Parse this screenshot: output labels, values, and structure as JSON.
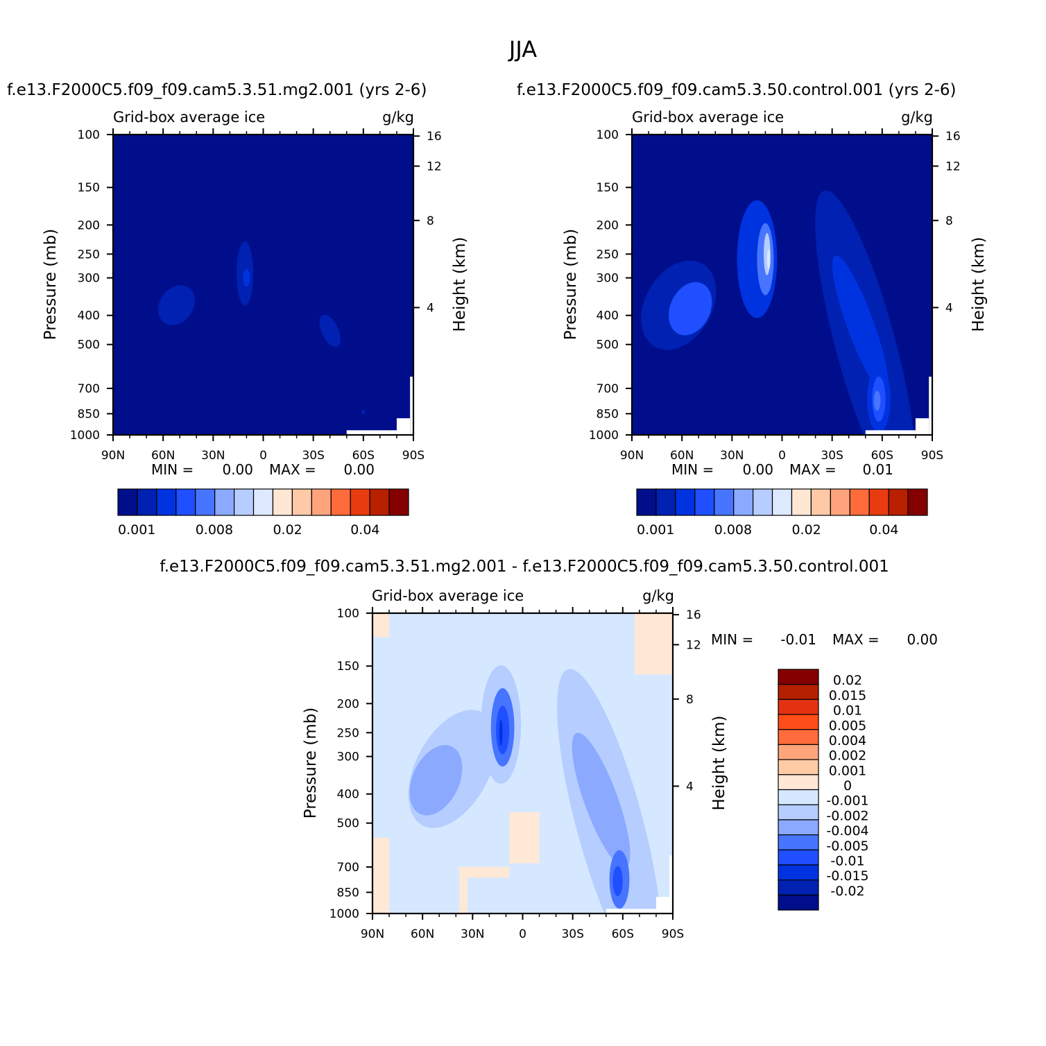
{
  "figure_title": "JJA",
  "colors": {
    "abs_palette": [
      "#000e8c",
      "#0021b2",
      "#0033e0",
      "#1f4fff",
      "#4775ff",
      "#8aa9ff",
      "#b6cdff",
      "#dce9ff",
      "#ffe7d4",
      "#ffc9a8",
      "#ffa37c",
      "#ff6b3a",
      "#e83c10",
      "#b82000",
      "#850000"
    ],
    "diff_palette": [
      "#000e8c",
      "#0021b2",
      "#0033e0",
      "#1f4fff",
      "#4775ff",
      "#8aa9ff",
      "#b6cdff",
      "#d6e8ff",
      "#ffe8d6",
      "#ffcba5",
      "#ffa57c",
      "#ff6b3a",
      "#ff4d1a",
      "#e23212",
      "#b52000",
      "#850000"
    ]
  },
  "chart_data": [
    {
      "type": "heatmap",
      "id": "panel_mg2",
      "title": "f.e13.F2000C5.f09_f09.cam5.3.51.mg2.001 (yrs 2-6)",
      "subtitle_left": "Grid-box average ice",
      "subtitle_right": "g/kg",
      "xlabel": "",
      "ylabel": "Pressure (mb)",
      "ylabel_right": "Height (km)",
      "x_ticklabels": [
        "90N",
        "60N",
        "30N",
        "0",
        "30S",
        "60S",
        "90S"
      ],
      "x_range": [
        90,
        -90
      ],
      "y_ticklabels": [
        "100",
        "150",
        "200",
        "250",
        "300",
        "400",
        "500",
        "700",
        "850",
        "1000"
      ],
      "y_range": [
        100,
        1000
      ],
      "height_ticklabels": [
        "16",
        "12",
        "8",
        "4"
      ],
      "stats": {
        "min_label": "MIN =",
        "min": "0.00",
        "max_label": "MAX =",
        "max": "0.00"
      },
      "background_level": 0,
      "blobs": [
        {
          "lat": 52,
          "p": 370,
          "ry": 35,
          "sx": 10,
          "sp": 60,
          "level": 1,
          "rot": 35
        },
        {
          "lat": 11,
          "p": 290,
          "ry": 45,
          "sx": 5,
          "sp": 70,
          "level": 1,
          "rot": 0
        },
        {
          "lat": 10,
          "p": 300,
          "ry": 5,
          "sx": 2,
          "sp": 20,
          "level": 2,
          "rot": 0
        },
        {
          "lat": -40,
          "p": 450,
          "ry": 40,
          "sx": 5,
          "sp": 60,
          "level": 1,
          "rot": -25
        },
        {
          "lat": -60,
          "p": 840,
          "ry": 2,
          "sx": 1,
          "sp": 15,
          "level": 1,
          "rot": 0
        }
      ],
      "colorbar": {
        "orientation": "horizontal",
        "labels": [
          "0.001",
          "0.008",
          "0.02",
          "0.04"
        ],
        "label_index": [
          0,
          4,
          8,
          12
        ]
      }
    },
    {
      "type": "heatmap",
      "id": "panel_control",
      "title": "f.e13.F2000C5.f09_f09.cam5.3.50.control.001 (yrs 2-6)",
      "subtitle_left": "Grid-box average ice",
      "subtitle_right": "g/kg",
      "xlabel": "",
      "ylabel": "Pressure (mb)",
      "ylabel_right": "Height (km)",
      "x_ticklabels": [
        "90N",
        "60N",
        "30N",
        "0",
        "30S",
        "60S",
        "90S"
      ],
      "x_range": [
        90,
        -90
      ],
      "y_ticklabels": [
        "100",
        "150",
        "200",
        "250",
        "300",
        "400",
        "500",
        "700",
        "850",
        "1000"
      ],
      "y_range": [
        100,
        1000
      ],
      "height_ticklabels": [
        "16",
        "12",
        "8",
        "4"
      ],
      "stats": {
        "min_label": "MIN =",
        "min": "0.00",
        "max_label": "MAX =",
        "max": "0.01"
      },
      "background_level": 0,
      "blobs": [
        {
          "lat": 62,
          "p": 370,
          "ry": 38,
          "sx": 20,
          "sp": 130,
          "level": 1,
          "rot": 30
        },
        {
          "lat": 15,
          "p": 260,
          "ry": 20,
          "sx": 12,
          "sp": 110,
          "level": 2,
          "rot": 0
        },
        {
          "lat": 55,
          "p": 380,
          "ry": 28,
          "sx": 12,
          "sp": 80,
          "level": 3,
          "rot": 25
        },
        {
          "lat": 10,
          "p": 260,
          "ry": 12,
          "sx": 5,
          "sp": 70,
          "level": 4,
          "rot": 0
        },
        {
          "lat": 9,
          "p": 250,
          "ry": 6,
          "sx": 2,
          "sp": 40,
          "level": 6,
          "rot": 0
        },
        {
          "lat": 8,
          "p": 260,
          "ry": 3,
          "sx": 1,
          "sp": 20,
          "level": 7,
          "rot": 0
        },
        {
          "lat": -50,
          "p": 500,
          "ry": 30,
          "sx": 18,
          "sp": 420,
          "level": 1,
          "rot": -15
        },
        {
          "lat": -47,
          "p": 430,
          "ry": 22,
          "sx": 8,
          "sp": 220,
          "level": 2,
          "rot": -20
        },
        {
          "lat": -58,
          "p": 760,
          "ry": 18,
          "sx": 7,
          "sp": 190,
          "level": 2,
          "rot": 0
        },
        {
          "lat": -58,
          "p": 760,
          "ry": 12,
          "sx": 4,
          "sp": 130,
          "level": 3,
          "rot": 0
        },
        {
          "lat": -57,
          "p": 770,
          "ry": 5,
          "sx": 2,
          "sp": 60,
          "level": 4,
          "rot": 0
        }
      ],
      "colorbar": {
        "orientation": "horizontal",
        "labels": [
          "0.001",
          "0.008",
          "0.02",
          "0.04"
        ],
        "label_index": [
          0,
          4,
          8,
          12
        ]
      }
    },
    {
      "type": "heatmap",
      "id": "panel_diff",
      "title": "f.e13.F2000C5.f09_f09.cam5.3.51.mg2.001 - f.e13.F2000C5.f09_f09.cam5.3.50.control.001",
      "subtitle_left": "Grid-box average ice",
      "subtitle_right": "g/kg",
      "xlabel": "",
      "ylabel": "Pressure (mb)",
      "ylabel_right": "Height (km)",
      "x_ticklabels": [
        "90N",
        "60N",
        "30N",
        "0",
        "30S",
        "60S",
        "90S"
      ],
      "x_range": [
        90,
        -90
      ],
      "y_ticklabels": [
        "100",
        "150",
        "200",
        "250",
        "300",
        "400",
        "500",
        "700",
        "850",
        "1000"
      ],
      "y_range": [
        100,
        1000
      ],
      "height_ticklabels": [
        "16",
        "12",
        "8",
        "4"
      ],
      "stats": {
        "min_label": "MIN =",
        "min": "-0.01",
        "max_label": "MAX =",
        "max": "0.00"
      },
      "background_level": 7,
      "positive_patches": [
        {
          "lat1": 90,
          "lat2": 80,
          "p1": 560,
          "p2": 1000
        },
        {
          "lat1": 8,
          "lat2": -10,
          "p1": 460,
          "p2": 680
        },
        {
          "lat1": 38,
          "lat2": 8,
          "p1": 700,
          "p2": 760
        },
        {
          "lat1": 38,
          "lat2": 33,
          "p1": 700,
          "p2": 1000
        },
        {
          "lat1": 90,
          "lat2": 80,
          "p1": 100,
          "p2": 120
        },
        {
          "lat1": -67,
          "lat2": -90,
          "p1": 100,
          "p2": 160
        }
      ],
      "blobs": [
        {
          "lat": 42,
          "p": 330,
          "ry": 44,
          "sx": 22,
          "sp": 150,
          "level": 6,
          "rot": 28
        },
        {
          "lat": 13,
          "p": 235,
          "ry": 18,
          "sx": 12,
          "sp": 100,
          "level": 6,
          "rot": 0
        },
        {
          "lat": 52,
          "p": 360,
          "ry": 30,
          "sx": 14,
          "sp": 100,
          "level": 5,
          "rot": 25
        },
        {
          "lat": 12,
          "p": 240,
          "ry": 12,
          "sx": 7,
          "sp": 70,
          "level": 4,
          "rot": 0
        },
        {
          "lat": 12,
          "p": 245,
          "ry": 8,
          "sx": 4,
          "sp": 45,
          "level": 3,
          "rot": 0
        },
        {
          "lat": 13,
          "p": 250,
          "ry": 3,
          "sx": 1,
          "sp": 25,
          "level": 2,
          "rot": 0
        },
        {
          "lat": -52,
          "p": 500,
          "ry": 28,
          "sx": 20,
          "sp": 420,
          "level": 6,
          "rot": -15
        },
        {
          "lat": -47,
          "p": 420,
          "ry": 22,
          "sx": 10,
          "sp": 210,
          "level": 5,
          "rot": -20
        },
        {
          "lat": -58,
          "p": 770,
          "ry": 14,
          "sx": 6,
          "sp": 170,
          "level": 4,
          "rot": 0
        },
        {
          "lat": -57,
          "p": 780,
          "ry": 8,
          "sx": 3,
          "sp": 90,
          "level": 3,
          "rot": 0
        }
      ],
      "colorbar": {
        "orientation": "vertical",
        "labels": [
          "0.02",
          "0.015",
          "0.01",
          "0.005",
          "0.004",
          "0.002",
          "0.001",
          "0",
          "-0.001",
          "-0.002",
          "-0.004",
          "-0.005",
          "-0.01",
          "-0.015",
          "-0.02"
        ]
      }
    }
  ]
}
